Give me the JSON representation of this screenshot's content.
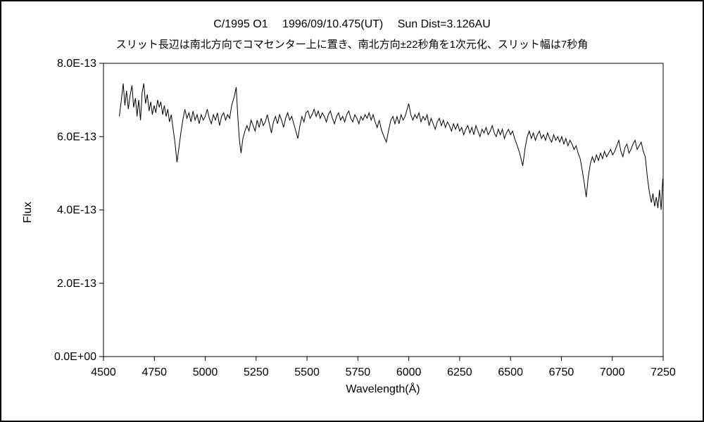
{
  "chart_data": {
    "type": "line",
    "title": "C/1995 O1　 1996/09/10.475(UT)　 Sun Dist=3.126AU",
    "subtitle": "スリット長辺は南北方向でコマセンター上に置き、南北方向±22秒角を1次元化、スリット幅は7秒角",
    "xlabel": "Wavelength(Å)",
    "ylabel": "Flux",
    "xlim": [
      4500,
      7250
    ],
    "ylim_1e13": [
      0,
      8
    ],
    "flux_unit": "1e-13",
    "grid": false,
    "legend": false,
    "line_color": "#000000",
    "x_ticks": [
      4500,
      4750,
      5000,
      5250,
      5500,
      5750,
      6000,
      6250,
      6500,
      6750,
      7000,
      7250
    ],
    "y_ticks": [
      {
        "value_1e13": 0,
        "label": "0.0E+00"
      },
      {
        "value_1e13": 2,
        "label": "2.0E-13"
      },
      {
        "value_1e13": 4,
        "label": "4.0E-13"
      },
      {
        "value_1e13": 6,
        "label": "6.0E-13"
      },
      {
        "value_1e13": 8,
        "label": "8.0E-13"
      }
    ],
    "points": [
      [
        4578,
        6.55
      ],
      [
        4588,
        7.0
      ],
      [
        4597,
        7.45
      ],
      [
        4605,
        6.85
      ],
      [
        4613,
        7.25
      ],
      [
        4622,
        6.75
      ],
      [
        4630,
        7.1
      ],
      [
        4640,
        7.4
      ],
      [
        4648,
        6.8
      ],
      [
        4657,
        7.05
      ],
      [
        4665,
        6.55
      ],
      [
        4673,
        7.0
      ],
      [
        4682,
        6.45
      ],
      [
        4690,
        7.2
      ],
      [
        4698,
        7.45
      ],
      [
        4707,
        6.9
      ],
      [
        4715,
        7.15
      ],
      [
        4724,
        6.7
      ],
      [
        4732,
        6.95
      ],
      [
        4740,
        6.6
      ],
      [
        4749,
        6.85
      ],
      [
        4757,
        6.65
      ],
      [
        4766,
        7.0
      ],
      [
        4774,
        6.8
      ],
      [
        4782,
        6.95
      ],
      [
        4791,
        6.6
      ],
      [
        4799,
        6.85
      ],
      [
        4808,
        6.55
      ],
      [
        4816,
        6.75
      ],
      [
        4824,
        6.4
      ],
      [
        4833,
        6.6
      ],
      [
        4841,
        6.25
      ],
      [
        4850,
        5.9
      ],
      [
        4861,
        5.3
      ],
      [
        4872,
        5.75
      ],
      [
        4880,
        6.1
      ],
      [
        4890,
        6.45
      ],
      [
        4900,
        6.75
      ],
      [
        4910,
        6.5
      ],
      [
        4920,
        6.65
      ],
      [
        4930,
        6.4
      ],
      [
        4940,
        6.7
      ],
      [
        4950,
        6.45
      ],
      [
        4960,
        6.6
      ],
      [
        4970,
        6.35
      ],
      [
        4980,
        6.6
      ],
      [
        4990,
        6.45
      ],
      [
        5000,
        6.55
      ],
      [
        5010,
        6.75
      ],
      [
        5020,
        6.5
      ],
      [
        5030,
        6.35
      ],
      [
        5040,
        6.6
      ],
      [
        5050,
        6.45
      ],
      [
        5060,
        6.65
      ],
      [
        5070,
        6.3
      ],
      [
        5080,
        6.55
      ],
      [
        5090,
        6.65
      ],
      [
        5100,
        6.45
      ],
      [
        5110,
        6.6
      ],
      [
        5120,
        6.5
      ],
      [
        5130,
        6.85
      ],
      [
        5143,
        7.1
      ],
      [
        5152,
        7.35
      ],
      [
        5160,
        6.55
      ],
      [
        5168,
        5.9
      ],
      [
        5176,
        5.55
      ],
      [
        5185,
        5.95
      ],
      [
        5195,
        6.15
      ],
      [
        5205,
        6.3
      ],
      [
        5215,
        6.15
      ],
      [
        5225,
        6.45
      ],
      [
        5235,
        6.3
      ],
      [
        5245,
        6.15
      ],
      [
        5255,
        6.45
      ],
      [
        5265,
        6.25
      ],
      [
        5275,
        6.5
      ],
      [
        5285,
        6.3
      ],
      [
        5295,
        6.4
      ],
      [
        5305,
        6.6
      ],
      [
        5315,
        6.35
      ],
      [
        5325,
        6.1
      ],
      [
        5335,
        6.4
      ],
      [
        5345,
        6.55
      ],
      [
        5355,
        6.35
      ],
      [
        5365,
        6.6
      ],
      [
        5375,
        6.45
      ],
      [
        5385,
        6.25
      ],
      [
        5395,
        6.5
      ],
      [
        5405,
        6.65
      ],
      [
        5415,
        6.45
      ],
      [
        5425,
        6.55
      ],
      [
        5435,
        6.35
      ],
      [
        5445,
        6.15
      ],
      [
        5455,
        5.95
      ],
      [
        5465,
        6.3
      ],
      [
        5475,
        6.55
      ],
      [
        5485,
        6.4
      ],
      [
        5495,
        6.65
      ],
      [
        5505,
        6.7
      ],
      [
        5515,
        6.5
      ],
      [
        5525,
        6.6
      ],
      [
        5535,
        6.75
      ],
      [
        5545,
        6.55
      ],
      [
        5555,
        6.7
      ],
      [
        5565,
        6.5
      ],
      [
        5575,
        6.65
      ],
      [
        5585,
        6.55
      ],
      [
        5595,
        6.4
      ],
      [
        5605,
        6.6
      ],
      [
        5615,
        6.7
      ],
      [
        5625,
        6.5
      ],
      [
        5635,
        6.35
      ],
      [
        5645,
        6.55
      ],
      [
        5655,
        6.65
      ],
      [
        5665,
        6.45
      ],
      [
        5675,
        6.55
      ],
      [
        5685,
        6.4
      ],
      [
        5695,
        6.6
      ],
      [
        5705,
        6.7
      ],
      [
        5715,
        6.5
      ],
      [
        5725,
        6.4
      ],
      [
        5735,
        6.6
      ],
      [
        5745,
        6.5
      ],
      [
        5755,
        6.35
      ],
      [
        5765,
        6.55
      ],
      [
        5775,
        6.45
      ],
      [
        5785,
        6.6
      ],
      [
        5795,
        6.5
      ],
      [
        5805,
        6.65
      ],
      [
        5815,
        6.45
      ],
      [
        5825,
        6.6
      ],
      [
        5835,
        6.4
      ],
      [
        5845,
        6.25
      ],
      [
        5855,
        6.45
      ],
      [
        5865,
        6.2
      ],
      [
        5878,
        6.0
      ],
      [
        5890,
        5.85
      ],
      [
        5902,
        6.2
      ],
      [
        5912,
        6.45
      ],
      [
        5922,
        6.55
      ],
      [
        5932,
        6.35
      ],
      [
        5942,
        6.55
      ],
      [
        5952,
        6.35
      ],
      [
        5962,
        6.6
      ],
      [
        5972,
        6.45
      ],
      [
        5982,
        6.55
      ],
      [
        5992,
        6.75
      ],
      [
        6000,
        6.9
      ],
      [
        6010,
        6.6
      ],
      [
        6020,
        6.45
      ],
      [
        6030,
        6.6
      ],
      [
        6040,
        6.5
      ],
      [
        6050,
        6.65
      ],
      [
        6060,
        6.4
      ],
      [
        6070,
        6.55
      ],
      [
        6080,
        6.45
      ],
      [
        6090,
        6.6
      ],
      [
        6100,
        6.3
      ],
      [
        6110,
        6.5
      ],
      [
        6120,
        6.35
      ],
      [
        6130,
        6.2
      ],
      [
        6140,
        6.4
      ],
      [
        6150,
        6.5
      ],
      [
        6160,
        6.3
      ],
      [
        6170,
        6.45
      ],
      [
        6180,
        6.25
      ],
      [
        6190,
        6.4
      ],
      [
        6200,
        6.3
      ],
      [
        6210,
        6.15
      ],
      [
        6220,
        6.35
      ],
      [
        6230,
        6.2
      ],
      [
        6240,
        6.35
      ],
      [
        6250,
        6.15
      ],
      [
        6260,
        6.25
      ],
      [
        6270,
        6.05
      ],
      [
        6280,
        6.2
      ],
      [
        6290,
        6.3
      ],
      [
        6300,
        6.1
      ],
      [
        6310,
        6.25
      ],
      [
        6320,
        6.05
      ],
      [
        6330,
        6.3
      ],
      [
        6340,
        6.15
      ],
      [
        6350,
        6.0
      ],
      [
        6360,
        6.2
      ],
      [
        6370,
        6.1
      ],
      [
        6380,
        6.25
      ],
      [
        6390,
        6.05
      ],
      [
        6400,
        6.15
      ],
      [
        6410,
        6.3
      ],
      [
        6420,
        6.1
      ],
      [
        6430,
        6.0
      ],
      [
        6440,
        6.2
      ],
      [
        6450,
        6.05
      ],
      [
        6460,
        6.2
      ],
      [
        6470,
        5.95
      ],
      [
        6480,
        6.1
      ],
      [
        6490,
        6.2
      ],
      [
        6500,
        6.05
      ],
      [
        6510,
        6.15
      ],
      [
        6520,
        5.95
      ],
      [
        6530,
        5.8
      ],
      [
        6545,
        5.55
      ],
      [
        6560,
        5.2
      ],
      [
        6572,
        5.7
      ],
      [
        6582,
        6.0
      ],
      [
        6592,
        6.15
      ],
      [
        6602,
        5.95
      ],
      [
        6612,
        6.1
      ],
      [
        6622,
        5.9
      ],
      [
        6632,
        6.05
      ],
      [
        6642,
        6.15
      ],
      [
        6652,
        5.95
      ],
      [
        6662,
        6.05
      ],
      [
        6672,
        5.9
      ],
      [
        6682,
        6.1
      ],
      [
        6692,
        5.95
      ],
      [
        6702,
        5.85
      ],
      [
        6712,
        6.05
      ],
      [
        6722,
        5.9
      ],
      [
        6732,
        6.0
      ],
      [
        6742,
        5.85
      ],
      [
        6752,
        6.0
      ],
      [
        6762,
        5.8
      ],
      [
        6772,
        5.95
      ],
      [
        6782,
        5.75
      ],
      [
        6792,
        5.9
      ],
      [
        6802,
        5.8
      ],
      [
        6812,
        5.65
      ],
      [
        6822,
        5.75
      ],
      [
        6832,
        5.55
      ],
      [
        6842,
        5.4
      ],
      [
        6852,
        5.1
      ],
      [
        6862,
        4.75
      ],
      [
        6872,
        4.35
      ],
      [
        6882,
        4.9
      ],
      [
        6892,
        5.25
      ],
      [
        6902,
        5.45
      ],
      [
        6912,
        5.3
      ],
      [
        6922,
        5.5
      ],
      [
        6932,
        5.35
      ],
      [
        6942,
        5.55
      ],
      [
        6952,
        5.4
      ],
      [
        6962,
        5.6
      ],
      [
        6972,
        5.45
      ],
      [
        6982,
        5.55
      ],
      [
        6992,
        5.65
      ],
      [
        7002,
        5.5
      ],
      [
        7012,
        5.6
      ],
      [
        7022,
        5.75
      ],
      [
        7032,
        5.9
      ],
      [
        7042,
        5.6
      ],
      [
        7052,
        5.45
      ],
      [
        7062,
        5.7
      ],
      [
        7072,
        5.8
      ],
      [
        7082,
        5.55
      ],
      [
        7092,
        5.65
      ],
      [
        7102,
        5.8
      ],
      [
        7112,
        5.9
      ],
      [
        7122,
        5.65
      ],
      [
        7132,
        5.75
      ],
      [
        7142,
        5.85
      ],
      [
        7152,
        5.6
      ],
      [
        7162,
        5.45
      ],
      [
        7172,
        4.9
      ],
      [
        7182,
        4.5
      ],
      [
        7192,
        4.2
      ],
      [
        7200,
        4.45
      ],
      [
        7208,
        4.1
      ],
      [
        7216,
        4.35
      ],
      [
        7224,
        4.05
      ],
      [
        7232,
        4.55
      ],
      [
        7240,
        4.0
      ],
      [
        7248,
        4.85
      ]
    ]
  }
}
